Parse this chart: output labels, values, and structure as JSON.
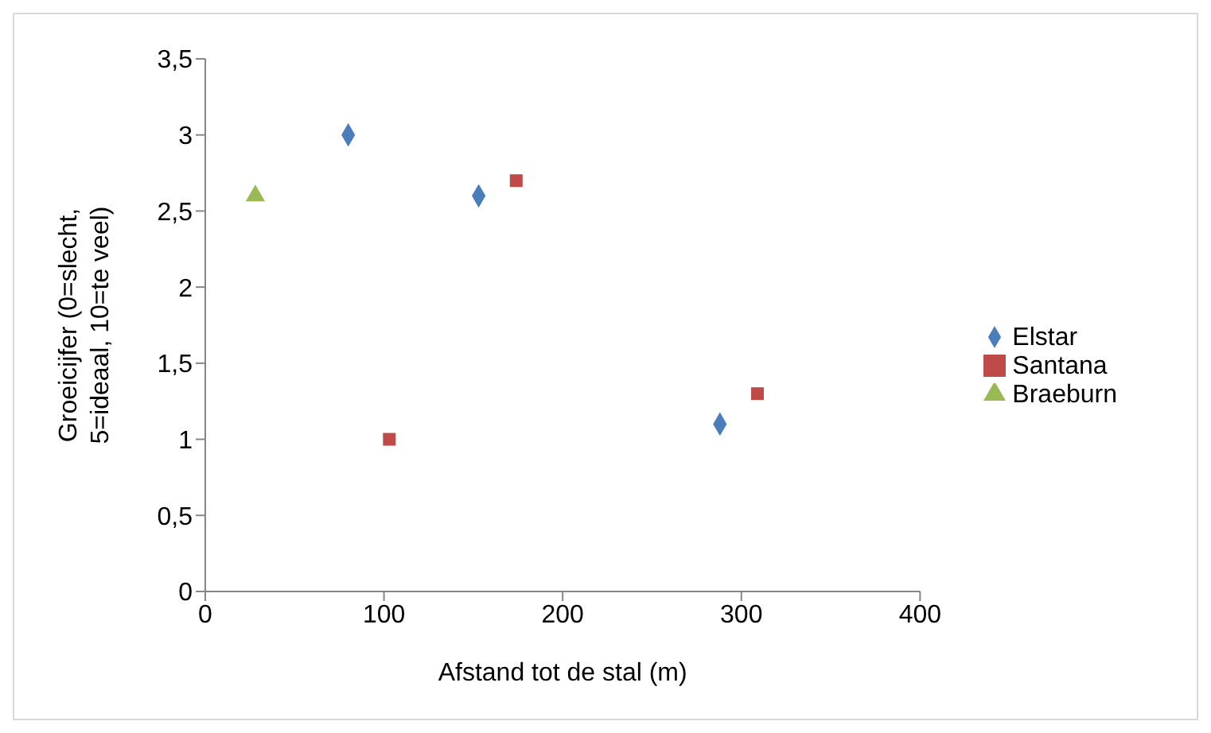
{
  "chart_data": {
    "type": "scatter",
    "xlabel": "Afstand tot de stal (m)",
    "ylabel": "Groeicijfer (0=slecht, 5=ideaal, 10=te veel)",
    "series": [
      {
        "name": "Elstar",
        "color": "#4a7ebb",
        "marker": "diamond",
        "x": [
          80,
          153,
          288
        ],
        "values": [
          3,
          2.6,
          1.1
        ]
      },
      {
        "name": "Santana",
        "color": "#be4b48",
        "marker": "square",
        "x": [
          103,
          174,
          309
        ],
        "values": [
          1,
          2.7,
          1.3
        ]
      },
      {
        "name": "Braeburn",
        "color": "#98b954",
        "marker": "triangle",
        "x": [
          28
        ],
        "values": [
          2.6
        ]
      }
    ],
    "xlim": [
      0,
      400
    ],
    "xticks": [
      0,
      100,
      200,
      300,
      400
    ],
    "ylim": [
      0,
      3.5
    ],
    "yticks": [
      0,
      {
        "value": 0.5,
        "label": "0,5"
      },
      1,
      {
        "value": 1.5,
        "label": "1,5"
      },
      2,
      {
        "value": 2.5,
        "label": "2,5"
      },
      3,
      {
        "value": 3.5,
        "label": "3,5"
      }
    ],
    "grid": false,
    "legend": "right"
  }
}
